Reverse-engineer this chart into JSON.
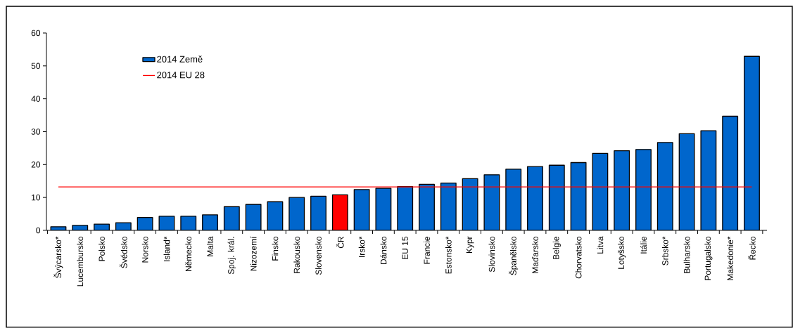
{
  "chart_data": {
    "type": "bar",
    "categories": [
      "Švýcarsko*",
      "Lucembursko",
      "Polsko",
      "Švédsko",
      "Norsko",
      "Island*",
      "Německo",
      "Malta",
      "Spoj. král.",
      "Nizozemí",
      "Finsko",
      "Rakousko",
      "Slovensko",
      "ČR",
      "Irsko*",
      "Dánsko",
      "EU 15",
      "Francie",
      "Estonsko*",
      "Kypr",
      "Slovinsko",
      "Španělsko",
      "Maďarsko",
      "Belgie",
      "Chorvatsko",
      "Litva",
      "Lotyšsko",
      "Itálie",
      "Srbsko*",
      "Bulharsko",
      "Portugalsko",
      "Makedonie*",
      "Řecko"
    ],
    "series": [
      {
        "name": "2014 Země",
        "color": "#0066cc",
        "colors": [
          "#0066cc",
          "#0066cc",
          "#0066cc",
          "#0066cc",
          "#0066cc",
          "#0066cc",
          "#0066cc",
          "#0066cc",
          "#0066cc",
          "#0066cc",
          "#0066cc",
          "#0066cc",
          "#0066cc",
          "#ff0000",
          "#0066cc",
          "#0066cc",
          "#0066cc",
          "#0066cc",
          "#0066cc",
          "#0066cc",
          "#0066cc",
          "#0066cc",
          "#0066cc",
          "#0066cc",
          "#0066cc",
          "#0066cc",
          "#0066cc",
          "#0066cc",
          "#0066cc",
          "#0066cc",
          "#0066cc",
          "#0066cc",
          "#0066cc"
        ],
        "values": [
          1.1,
          1.5,
          1.9,
          2.3,
          3.9,
          4.3,
          4.3,
          4.7,
          7.2,
          7.9,
          8.7,
          10.0,
          10.4,
          10.8,
          12.4,
          12.8,
          13.3,
          14.0,
          14.4,
          15.7,
          16.9,
          18.6,
          19.4,
          19.8,
          20.6,
          23.4,
          24.2,
          24.6,
          26.7,
          29.4,
          30.3,
          34.7,
          52.9
        ]
      },
      {
        "name": "2014 EU 28",
        "type": "line",
        "color": "#ff0000",
        "values": [
          13.2,
          13.2,
          13.2,
          13.2,
          13.2,
          13.2,
          13.2,
          13.2,
          13.2,
          13.2,
          13.2,
          13.2,
          13.2,
          13.2,
          13.2,
          13.2,
          13.2,
          13.2,
          13.2,
          13.2,
          13.2,
          13.2,
          13.2,
          13.2,
          13.2,
          13.2,
          13.2,
          13.2,
          13.2,
          13.2,
          13.2,
          13.2,
          13.2
        ]
      }
    ],
    "ylim": [
      0,
      60
    ],
    "yticks": [
      0,
      10,
      20,
      30,
      40,
      50,
      60
    ],
    "grid": false,
    "legend": "top left"
  }
}
